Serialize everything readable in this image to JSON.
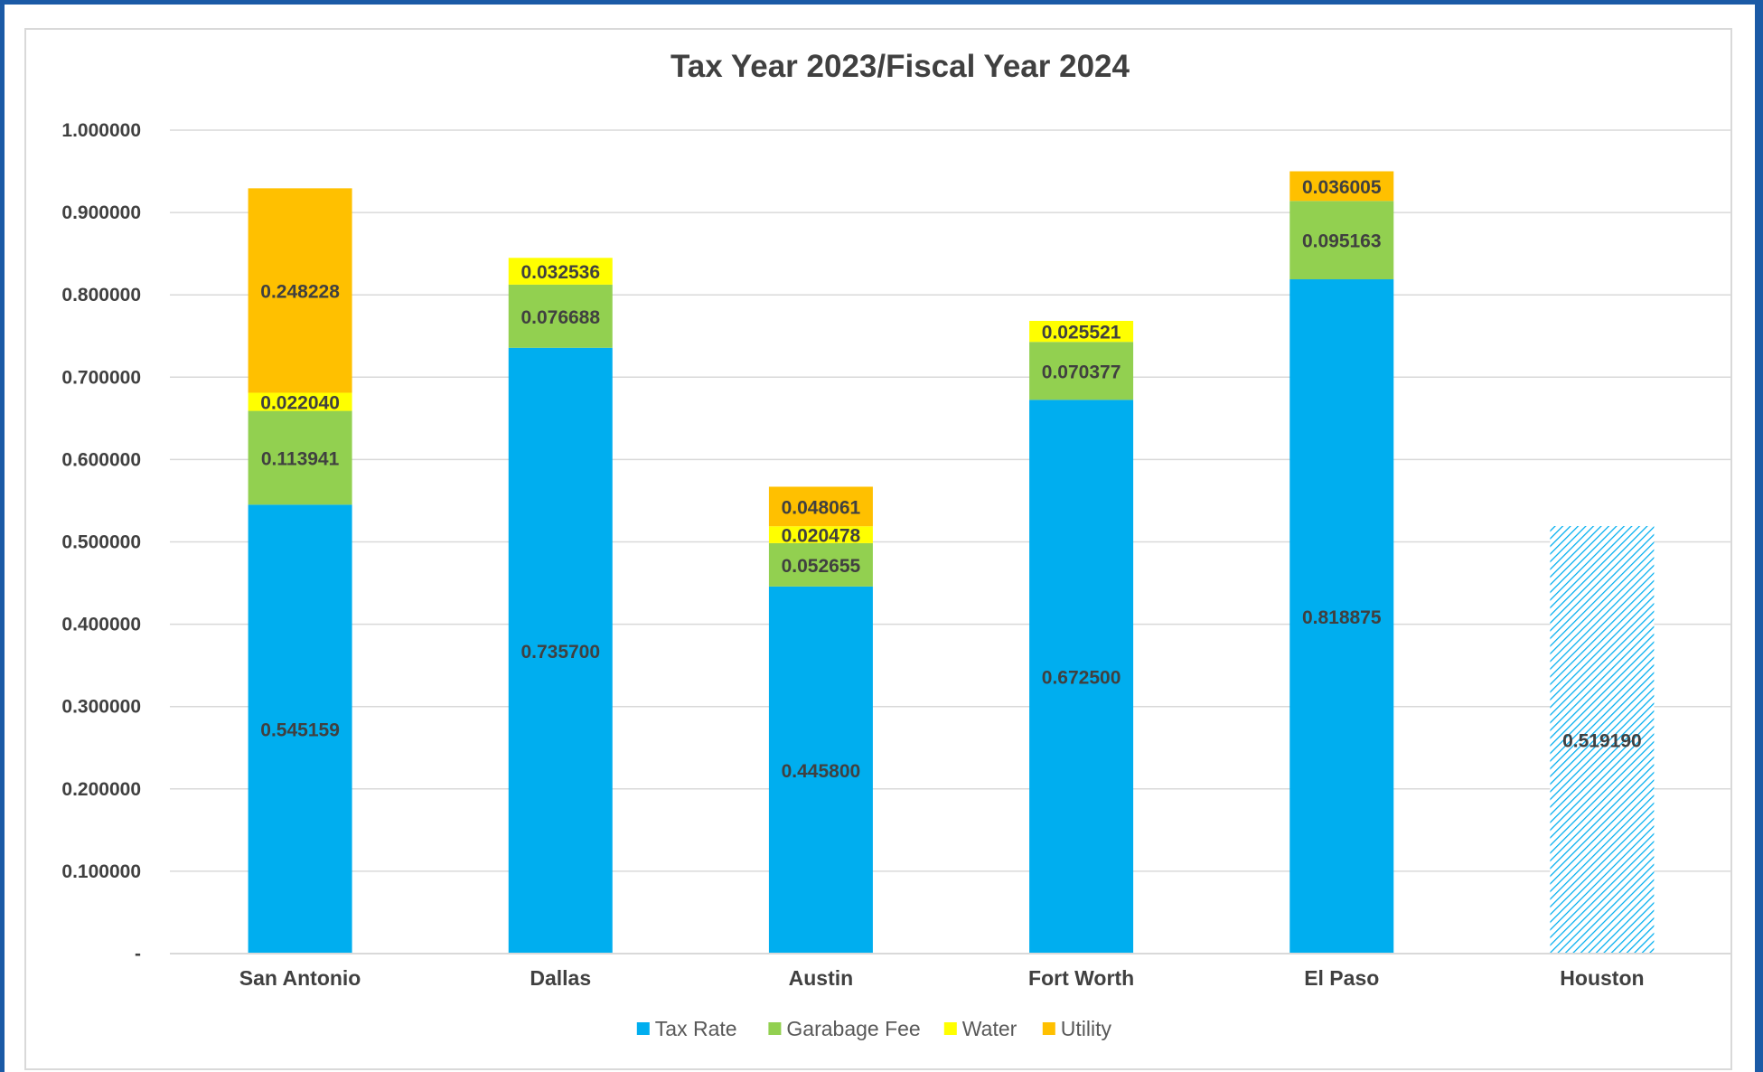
{
  "chart_data": {
    "type": "bar",
    "stacked": true,
    "title": "Tax Year 2023/Fiscal Year 2024",
    "xlabel": "",
    "ylabel": "",
    "ylim": [
      0,
      1.0
    ],
    "y_ticks": [
      "-",
      "0.100000",
      "0.200000",
      "0.300000",
      "0.400000",
      "0.500000",
      "0.600000",
      "0.700000",
      "0.800000",
      "0.900000",
      "1.000000"
    ],
    "grid": true,
    "legend_position": "bottom",
    "categories": [
      "San Antonio",
      "Dallas",
      "Austin",
      "Fort Worth",
      "El Paso",
      "Houston"
    ],
    "series": [
      {
        "name": "Tax Rate",
        "color": "#00aeef",
        "values": [
          0.545159,
          0.7357,
          0.4458,
          0.6725,
          0.818875,
          0.51919
        ],
        "labels": [
          "0.545159",
          "0.735700",
          "0.445800",
          "0.672500",
          "0.818875",
          "0.519190"
        ]
      },
      {
        "name": "Garabage Fee",
        "color": "#92d050",
        "values": [
          0.113941,
          0.076688,
          0.052655,
          0.070377,
          0.095163,
          null
        ],
        "labels": [
          "0.113941",
          "0.076688",
          "0.052655",
          "0.070377",
          "0.095163",
          ""
        ]
      },
      {
        "name": "Water",
        "color": "#ffff00",
        "values": [
          0.02204,
          0.032536,
          0.020478,
          0.025521,
          null,
          null
        ],
        "labels": [
          "0.022040",
          "0.032536",
          "0.020478",
          "0.025521",
          "",
          ""
        ]
      },
      {
        "name": "Utility",
        "color": "#ffc000",
        "values": [
          0.248228,
          null,
          0.048061,
          null,
          0.036005,
          null
        ],
        "labels": [
          "0.248228",
          "",
          "0.048061",
          "",
          "0.036005",
          ""
        ]
      }
    ],
    "hatched_categories": [
      "Houston"
    ],
    "hatch_color": "#00aeef"
  }
}
